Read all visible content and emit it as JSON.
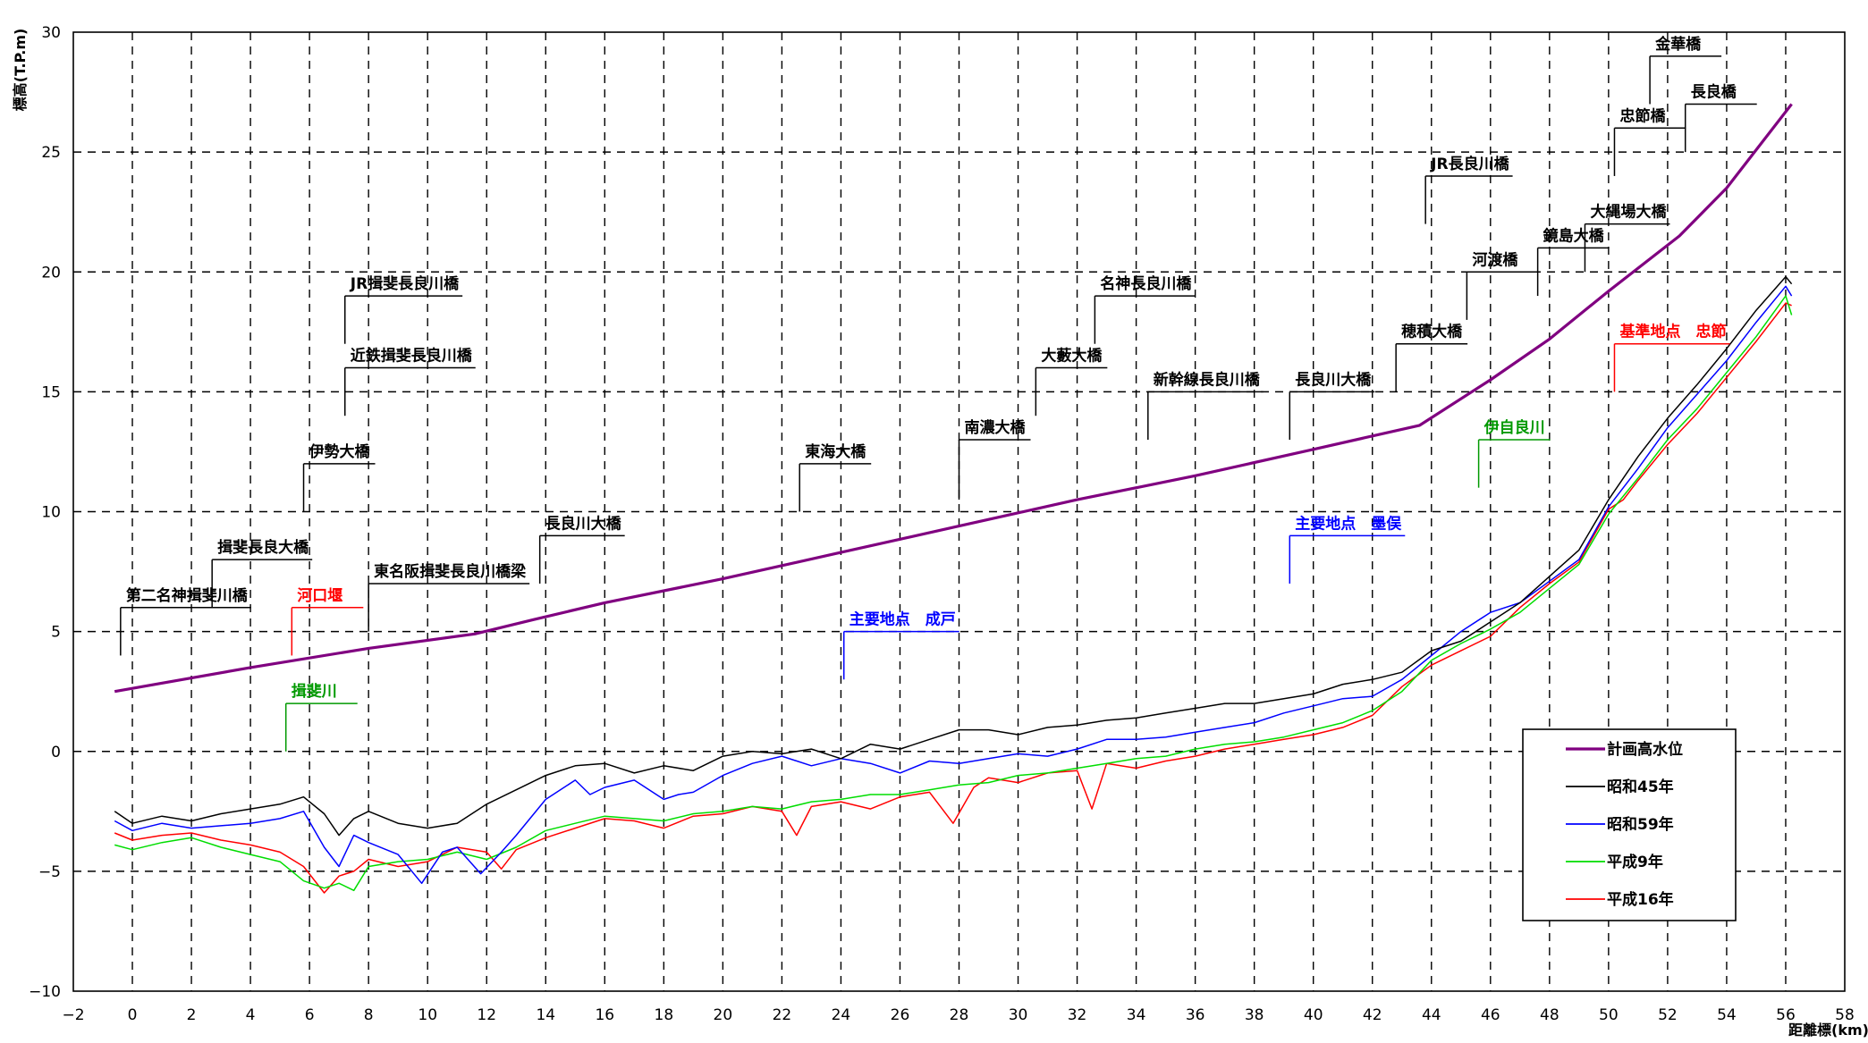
{
  "chart_data": {
    "type": "line",
    "xlabel": "距離標(km)",
    "ylabel": "標高(T.P.m)",
    "xlim": [
      -2,
      58
    ],
    "ylim": [
      -10,
      30
    ],
    "xticks": [
      "−2",
      "0",
      "2",
      "4",
      "6",
      "8",
      "10",
      "12",
      "14",
      "16",
      "18",
      "20",
      "22",
      "24",
      "26",
      "28",
      "30",
      "32",
      "34",
      "36",
      "38",
      "40",
      "42",
      "44",
      "46",
      "48",
      "50",
      "52",
      "54",
      "56",
      "58"
    ],
    "yticks": [
      "−10",
      "−5",
      "0",
      "5",
      "10",
      "15",
      "20",
      "25",
      "30"
    ],
    "grid": true,
    "legend_position": "bottom-right",
    "legend": [
      "計画高水位",
      "昭和45年",
      "昭和59年",
      "平成9年",
      "平成16年"
    ],
    "series": [
      {
        "name": "計画高水位",
        "color": "#800080",
        "x": [
          -0.6,
          4,
          8,
          11.6,
          13.6,
          16,
          20,
          24,
          28,
          32,
          36,
          40,
          43.6,
          46,
          48,
          50,
          52.4,
          54,
          56.2
        ],
        "y": [
          2.5,
          3.5,
          4.3,
          4.9,
          5.5,
          6.2,
          7.2,
          8.3,
          9.4,
          10.5,
          11.5,
          12.6,
          13.6,
          15.5,
          17.2,
          19.2,
          21.5,
          23.5,
          27.0
        ]
      },
      {
        "name": "昭和45年",
        "color": "#000000",
        "x": [
          -0.6,
          0,
          1,
          2,
          3,
          4,
          5,
          5.8,
          6.5,
          7,
          7.5,
          8,
          9,
          10,
          11,
          12,
          13,
          14,
          15,
          16,
          17,
          18,
          19,
          20,
          21,
          22,
          23,
          24,
          25,
          26,
          27,
          28,
          29,
          30,
          31,
          32,
          33,
          34,
          35,
          36,
          37,
          38,
          39,
          40,
          41,
          42,
          43,
          44,
          45,
          46,
          47,
          48,
          49,
          50,
          51,
          52,
          53,
          54,
          55,
          56,
          56.2
        ],
        "y": [
          -2.5,
          -3.0,
          -2.7,
          -2.9,
          -2.6,
          -2.4,
          -2.2,
          -1.9,
          -2.6,
          -3.5,
          -2.8,
          -2.5,
          -3.0,
          -3.2,
          -3.0,
          -2.2,
          -1.6,
          -1.0,
          -0.6,
          -0.5,
          -0.9,
          -0.6,
          -0.8,
          -0.2,
          0.0,
          -0.1,
          0.1,
          -0.3,
          0.3,
          0.1,
          0.5,
          0.9,
          0.9,
          0.7,
          1.0,
          1.1,
          1.3,
          1.4,
          1.6,
          1.8,
          2.0,
          2.0,
          2.2,
          2.4,
          2.8,
          3.0,
          3.3,
          4.2,
          4.6,
          5.4,
          6.2,
          7.3,
          8.4,
          10.5,
          12.3,
          13.9,
          15.3,
          16.8,
          18.4,
          19.8,
          19.5
        ]
      },
      {
        "name": "昭和59年",
        "color": "#0000ff",
        "x": [
          -0.6,
          0,
          1,
          2,
          3,
          4,
          5,
          5.8,
          6.5,
          7,
          7.5,
          8,
          9,
          9.8,
          10.5,
          11,
          11.8,
          12.5,
          13,
          14,
          15,
          15.5,
          16,
          17,
          18,
          18.5,
          19,
          20,
          21,
          22,
          23,
          24,
          25,
          26,
          27,
          28,
          29,
          30,
          31,
          32,
          33,
          34,
          35,
          36,
          37,
          38,
          39,
          40,
          41,
          42,
          43,
          44,
          45,
          46,
          47,
          48,
          49,
          50,
          51,
          52,
          53,
          54,
          55,
          56,
          56.2
        ],
        "y": [
          -2.9,
          -3.3,
          -3.0,
          -3.2,
          -3.1,
          -3.0,
          -2.8,
          -2.5,
          -4.0,
          -4.8,
          -3.5,
          -3.8,
          -4.3,
          -5.5,
          -4.2,
          -4.0,
          -5.1,
          -4.2,
          -3.5,
          -2.0,
          -1.2,
          -1.8,
          -1.5,
          -1.2,
          -2.0,
          -1.8,
          -1.7,
          -1.0,
          -0.5,
          -0.2,
          -0.6,
          -0.3,
          -0.5,
          -0.9,
          -0.4,
          -0.5,
          -0.3,
          -0.1,
          -0.2,
          0.1,
          0.5,
          0.5,
          0.6,
          0.8,
          1.0,
          1.2,
          1.6,
          1.9,
          2.2,
          2.3,
          3.0,
          4.0,
          5.0,
          5.8,
          6.2,
          7.1,
          8.0,
          10.2,
          11.8,
          13.5,
          14.9,
          16.3,
          17.9,
          19.4,
          19.0
        ]
      },
      {
        "name": "平成9年",
        "color": "#00dd00",
        "x": [
          -0.6,
          0,
          1,
          2,
          3,
          4,
          5,
          5.8,
          6.5,
          7,
          7.5,
          8,
          9,
          10,
          11,
          12,
          13,
          14,
          15,
          16,
          17,
          18,
          19,
          20,
          21,
          22,
          23,
          24,
          25,
          26,
          27,
          28,
          29,
          30,
          31,
          32,
          33,
          34,
          35,
          36,
          37,
          38,
          39,
          40,
          41,
          42,
          43,
          44,
          45,
          46,
          47,
          48,
          49,
          50,
          51,
          52,
          53,
          54,
          55,
          56,
          56.2
        ],
        "y": [
          -3.9,
          -4.1,
          -3.8,
          -3.6,
          -4.0,
          -4.3,
          -4.6,
          -5.4,
          -5.7,
          -5.5,
          -5.8,
          -4.8,
          -4.6,
          -4.5,
          -4.2,
          -4.5,
          -4.0,
          -3.3,
          -3.0,
          -2.7,
          -2.8,
          -2.9,
          -2.6,
          -2.5,
          -2.3,
          -2.4,
          -2.1,
          -2.0,
          -1.8,
          -1.8,
          -1.6,
          -1.4,
          -1.3,
          -1.0,
          -0.9,
          -0.7,
          -0.5,
          -0.3,
          -0.2,
          0.1,
          0.3,
          0.4,
          0.6,
          0.9,
          1.2,
          1.7,
          2.5,
          3.8,
          4.5,
          5.1,
          5.8,
          6.8,
          7.8,
          9.9,
          11.4,
          13.0,
          14.3,
          15.8,
          17.3,
          19.0,
          18.2
        ]
      },
      {
        "name": "平成16年",
        "color": "#ff0000",
        "x": [
          -0.6,
          0,
          1,
          2,
          3,
          4,
          5,
          5.8,
          6.5,
          7,
          7.5,
          8,
          9,
          10,
          11,
          12,
          12.5,
          13,
          14,
          15,
          16,
          17,
          18,
          19,
          20,
          21,
          22,
          22.5,
          23,
          24,
          25,
          26,
          27,
          27.8,
          28.5,
          29,
          30,
          31,
          32,
          32.5,
          33,
          34,
          35,
          36,
          37,
          38,
          39,
          40,
          41,
          42,
          43,
          44,
          45,
          46,
          47,
          48,
          49,
          50,
          50.5,
          51,
          52,
          53,
          54,
          55,
          56,
          56.2
        ],
        "y": [
          -3.4,
          -3.7,
          -3.5,
          -3.4,
          -3.7,
          -3.9,
          -4.2,
          -4.8,
          -5.9,
          -5.2,
          -5.0,
          -4.5,
          -4.8,
          -4.6,
          -4.0,
          -4.2,
          -4.9,
          -4.1,
          -3.6,
          -3.2,
          -2.8,
          -2.9,
          -3.2,
          -2.7,
          -2.6,
          -2.3,
          -2.5,
          -3.5,
          -2.3,
          -2.1,
          -2.4,
          -1.9,
          -1.7,
          -3.0,
          -1.5,
          -1.1,
          -1.3,
          -0.9,
          -0.8,
          -2.4,
          -0.5,
          -0.7,
          -0.4,
          -0.2,
          0.1,
          0.3,
          0.5,
          0.7,
          1.0,
          1.5,
          2.7,
          3.6,
          4.2,
          4.8,
          6.0,
          7.0,
          7.9,
          10.1,
          10.5,
          11.3,
          12.8,
          14.1,
          15.6,
          17.1,
          18.7,
          18.6
        ]
      }
    ],
    "annotations": [
      {
        "text": "第二名神揖斐川橋",
        "x": -0.4,
        "ystart": 4.0,
        "ytop": 6.0,
        "color": "#000000"
      },
      {
        "text": "揖斐長良大橋",
        "x": 2.7,
        "ystart": 6.0,
        "ytop": 8.0,
        "color": "#000000"
      },
      {
        "text": "河口堰",
        "x": 5.4,
        "ystart": 4.0,
        "ytop": 6.0,
        "color": "#ff0000"
      },
      {
        "text": "伊勢大橋",
        "x": 5.8,
        "ystart": 10.0,
        "ytop": 12.0,
        "color": "#000000"
      },
      {
        "text": "揖斐川",
        "x": 5.2,
        "ystart": 0.0,
        "ytop": 2.0,
        "color": "#009900"
      },
      {
        "text": "近鉄揖斐長良川橋",
        "x": 7.2,
        "ystart": 14.0,
        "ytop": 16.0,
        "color": "#000000"
      },
      {
        "text": "JR揖斐長良川橋",
        "x": 7.2,
        "ystart": 17.0,
        "ytop": 19.0,
        "color": "#000000"
      },
      {
        "text": "東名阪揖斐長良川橋梁",
        "x": 8.0,
        "ystart": 5.0,
        "ytop": 7.0,
        "color": "#000000"
      },
      {
        "text": "長良川大橋",
        "x": 13.8,
        "ystart": 7.0,
        "ytop": 9.0,
        "color": "#000000"
      },
      {
        "text": "主要地点　成戸",
        "x": 24.1,
        "ystart": 3.0,
        "ytop": 5.0,
        "color": "#0000ff"
      },
      {
        "text": "東海大橋",
        "x": 22.6,
        "ystart": 10.0,
        "ytop": 12.0,
        "color": "#000000"
      },
      {
        "text": "南濃大橋",
        "x": 28.0,
        "ystart": 10.5,
        "ytop": 13.0,
        "color": "#000000"
      },
      {
        "text": "大藪大橋",
        "x": 30.6,
        "ystart": 14.0,
        "ytop": 16.0,
        "color": "#000000"
      },
      {
        "text": "名神長良川橋",
        "x": 32.6,
        "ystart": 17.0,
        "ytop": 19.0,
        "color": "#000000"
      },
      {
        "text": "新幹線長良川橋",
        "x": 34.4,
        "ystart": 13.0,
        "ytop": 15.0,
        "color": "#000000"
      },
      {
        "text": "長良川大橋",
        "x": 39.2,
        "ystart": 13.0,
        "ytop": 15.0,
        "color": "#000000"
      },
      {
        "text": "主要地点　墨俣",
        "x": 39.2,
        "ystart": 7.0,
        "ytop": 9.0,
        "color": "#0000ff"
      },
      {
        "text": "穂積大橋",
        "x": 42.8,
        "ystart": 15.0,
        "ytop": 17.0,
        "color": "#000000"
      },
      {
        "text": "JR長良川橋",
        "x": 43.8,
        "ystart": 22.0,
        "ytop": 24.0,
        "color": "#000000"
      },
      {
        "text": "河渡橋",
        "x": 45.2,
        "ystart": 18.0,
        "ytop": 20.0,
        "color": "#000000"
      },
      {
        "text": "伊自良川",
        "x": 45.6,
        "ystart": 11.0,
        "ytop": 13.0,
        "color": "#009900"
      },
      {
        "text": "鏡島大橋",
        "x": 47.6,
        "ystart": 19.0,
        "ytop": 21.0,
        "color": "#000000"
      },
      {
        "text": "大縄場大橋",
        "x": 49.2,
        "ystart": 20.0,
        "ytop": 22.0,
        "color": "#000000"
      },
      {
        "text": "基準地点　忠節",
        "x": 50.2,
        "ystart": 15.0,
        "ytop": 17.0,
        "color": "#ff0000"
      },
      {
        "text": "忠節橋",
        "x": 50.2,
        "ystart": 24.0,
        "ytop": 26.0,
        "color": "#000000"
      },
      {
        "text": "金華橋",
        "x": 51.4,
        "ystart": 27.0,
        "ytop": 29.0,
        "color": "#000000"
      },
      {
        "text": "長良橋",
        "x": 52.6,
        "ystart": 25.0,
        "ytop": 27.0,
        "color": "#000000"
      }
    ]
  }
}
